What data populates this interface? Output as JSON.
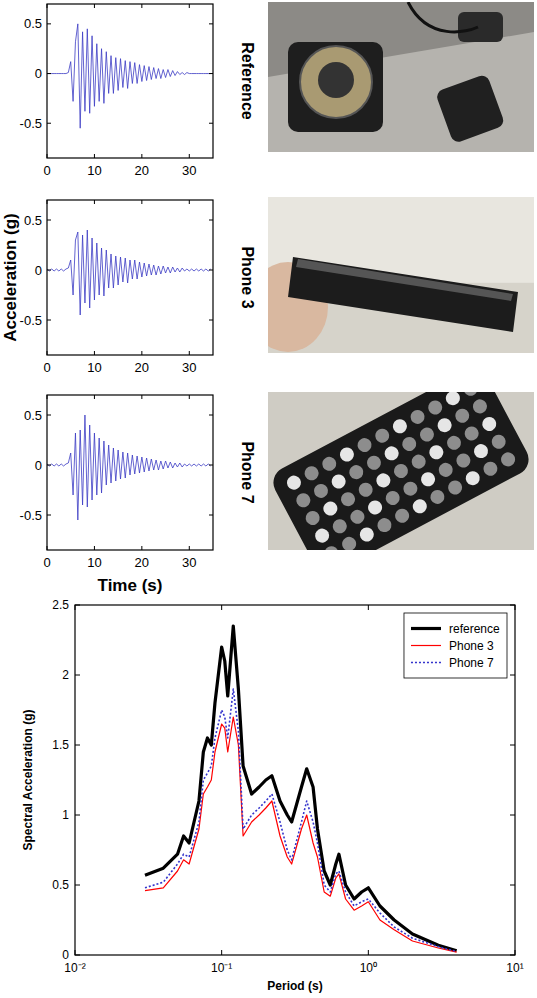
{
  "chart_data": [
    {
      "type": "line",
      "title": "Reference",
      "x": [
        0,
        0.5,
        1,
        1.5,
        2,
        2.5,
        3,
        3.5,
        4,
        4.5,
        5,
        5.5,
        6,
        6.5,
        7,
        7.5,
        8,
        8.5,
        9,
        9.5,
        10,
        10.5,
        11,
        11.5,
        12,
        12.5,
        13,
        13.5,
        14,
        14.5,
        15,
        15.5,
        16,
        16.5,
        17,
        17.5,
        18,
        18.5,
        19,
        19.5,
        20,
        20.5,
        21,
        21.5,
        22,
        22.5,
        23,
        23.5,
        24,
        24.5,
        25,
        25.5,
        26,
        26.5,
        27,
        27.5,
        28,
        28.5,
        29,
        29.5,
        30,
        30.5,
        31,
        31.5,
        32,
        32.5,
        33,
        33.5,
        34,
        34.5
      ],
      "values": [
        0,
        0,
        0,
        0,
        0,
        0,
        0,
        0,
        0,
        0.01,
        0.12,
        -0.28,
        0.32,
        0.5,
        -0.55,
        0.42,
        -0.38,
        0.45,
        -0.4,
        0.38,
        -0.33,
        0.3,
        -0.28,
        0.25,
        -0.3,
        0.22,
        -0.2,
        0.18,
        -0.2,
        0.16,
        -0.17,
        0.15,
        -0.14,
        0.13,
        -0.15,
        0.12,
        -0.1,
        0.11,
        -0.1,
        0.09,
        -0.08,
        0.08,
        -0.07,
        0.07,
        -0.06,
        0.06,
        -0.05,
        0.05,
        -0.05,
        0.04,
        -0.04,
        0.04,
        -0.03,
        0.03,
        -0.02,
        0.02,
        -0.01,
        0.01,
        -0.01,
        0.01,
        0,
        0,
        0,
        0,
        0,
        0,
        0,
        0,
        0,
        0
      ],
      "color": "#3b3bc4",
      "xlim": [
        0,
        35
      ],
      "xticks": [
        0,
        10,
        20,
        30
      ],
      "ylim": [
        -0.85,
        0.7
      ],
      "yticks": [
        -0.5,
        0,
        0.5
      ]
    },
    {
      "type": "line",
      "title": "Phone 3",
      "ylabel": "Acceleration (g)",
      "x": [
        0,
        0.5,
        1,
        1.5,
        2,
        2.5,
        3,
        3.5,
        4,
        4.5,
        5,
        5.5,
        6,
        6.5,
        7,
        7.5,
        8,
        8.5,
        9,
        9.5,
        10,
        10.5,
        11,
        11.5,
        12,
        12.5,
        13,
        13.5,
        14,
        14.5,
        15,
        15.5,
        16,
        16.5,
        17,
        17.5,
        18,
        18.5,
        19,
        19.5,
        20,
        20.5,
        21,
        21.5,
        22,
        22.5,
        23,
        23.5,
        24,
        24.5,
        25,
        25.5,
        26,
        26.5,
        27,
        27.5,
        28,
        28.5,
        29,
        29.5,
        30,
        30.5,
        31,
        31.5,
        32,
        32.5,
        33,
        33.5,
        34,
        34.5
      ],
      "values": [
        0.01,
        -0.01,
        0.01,
        -0.01,
        0.01,
        -0.01,
        0.01,
        -0.01,
        0.01,
        0.02,
        0.1,
        -0.25,
        0.3,
        0.38,
        -0.45,
        0.35,
        -0.33,
        0.4,
        -0.38,
        0.32,
        -0.3,
        0.27,
        -0.25,
        0.22,
        -0.26,
        0.2,
        -0.18,
        0.16,
        -0.18,
        0.14,
        -0.15,
        0.13,
        -0.12,
        0.12,
        -0.13,
        0.1,
        -0.09,
        0.1,
        -0.09,
        0.08,
        -0.07,
        0.07,
        -0.06,
        0.06,
        -0.05,
        0.05,
        -0.05,
        0.04,
        -0.04,
        0.04,
        -0.03,
        0.03,
        -0.03,
        0.03,
        -0.02,
        0.02,
        -0.02,
        0.02,
        -0.01,
        0.01,
        -0.01,
        0.01,
        -0.01,
        0.01,
        -0.01,
        0.01,
        -0.01,
        0.01,
        -0.01,
        0.01
      ],
      "color": "#3b3bc4",
      "xlim": [
        0,
        35
      ],
      "xticks": [
        0,
        10,
        20,
        30
      ],
      "ylim": [
        -0.85,
        0.7
      ],
      "yticks": [
        -0.5,
        0,
        0.5
      ]
    },
    {
      "type": "line",
      "title": "Phone 7",
      "xlabel": "Time (s)",
      "x": [
        0,
        0.5,
        1,
        1.5,
        2,
        2.5,
        3,
        3.5,
        4,
        4.5,
        5,
        5.5,
        6,
        6.5,
        7,
        7.5,
        8,
        8.5,
        9,
        9.5,
        10,
        10.5,
        11,
        11.5,
        12,
        12.5,
        13,
        13.5,
        14,
        14.5,
        15,
        15.5,
        16,
        16.5,
        17,
        17.5,
        18,
        18.5,
        19,
        19.5,
        20,
        20.5,
        21,
        21.5,
        22,
        22.5,
        23,
        23.5,
        24,
        24.5,
        25,
        25.5,
        26,
        26.5,
        27,
        27.5,
        28,
        28.5,
        29,
        29.5,
        30,
        30.5,
        31,
        31.5,
        32,
        32.5,
        33,
        33.5,
        34,
        34.5
      ],
      "values": [
        0.01,
        -0.01,
        0.01,
        -0.01,
        0.01,
        -0.01,
        0.01,
        -0.01,
        0.01,
        0.02,
        0.12,
        -0.3,
        0.32,
        -0.55,
        0.35,
        -0.4,
        0.5,
        -0.42,
        0.4,
        -0.35,
        0.32,
        -0.3,
        0.27,
        -0.28,
        0.24,
        -0.2,
        0.2,
        -0.18,
        0.17,
        -0.16,
        0.15,
        -0.14,
        0.13,
        -0.13,
        0.12,
        -0.1,
        0.1,
        -0.09,
        0.09,
        -0.08,
        0.08,
        -0.07,
        0.07,
        -0.06,
        0.06,
        -0.05,
        0.05,
        -0.05,
        0.04,
        -0.04,
        0.04,
        -0.03,
        0.03,
        -0.03,
        0.02,
        -0.02,
        0.02,
        -0.02,
        0.01,
        -0.01,
        0.01,
        -0.01,
        0.01,
        -0.01,
        0.01,
        -0.01,
        0.01,
        -0.01,
        0.01,
        -0.01
      ],
      "color": "#3b3bc4",
      "xlim": [
        0,
        35
      ],
      "xticks": [
        0,
        10,
        20,
        30
      ],
      "ylim": [
        -0.85,
        0.7
      ],
      "yticks": [
        -0.5,
        0,
        0.5
      ]
    },
    {
      "type": "line",
      "log": "x",
      "xlabel": "Period (s)",
      "ylabel": "Spectral Acceleration (g)",
      "x": [
        0.03,
        0.04,
        0.05,
        0.055,
        0.06,
        0.07,
        0.075,
        0.08,
        0.085,
        0.09,
        0.1,
        0.105,
        0.11,
        0.12,
        0.13,
        0.14,
        0.16,
        0.18,
        0.2,
        0.22,
        0.25,
        0.28,
        0.3,
        0.35,
        0.38,
        0.42,
        0.45,
        0.5,
        0.55,
        0.6,
        0.63,
        0.7,
        0.8,
        0.9,
        1.0,
        1.2,
        1.5,
        2,
        3,
        4
      ],
      "series": [
        {
          "name": "reference",
          "color": "#000000",
          "line_style": "solid",
          "values": [
            0.57,
            0.62,
            0.72,
            0.85,
            0.8,
            1.1,
            1.45,
            1.55,
            1.5,
            1.8,
            2.2,
            2.1,
            1.85,
            2.35,
            1.9,
            1.35,
            1.15,
            1.2,
            1.25,
            1.28,
            1.1,
            1.0,
            0.95,
            1.2,
            1.33,
            1.2,
            0.9,
            0.6,
            0.5,
            0.65,
            0.72,
            0.5,
            0.4,
            0.45,
            0.48,
            0.35,
            0.25,
            0.15,
            0.07,
            0.03
          ]
        },
        {
          "name": "Phone 3",
          "color": "#ff0000",
          "line_style": "solid",
          "values": [
            0.46,
            0.48,
            0.6,
            0.68,
            0.65,
            0.9,
            1.15,
            1.2,
            1.25,
            1.45,
            1.65,
            1.62,
            1.45,
            1.7,
            1.5,
            0.85,
            0.95,
            1.0,
            1.05,
            1.1,
            0.85,
            0.7,
            0.65,
            0.9,
            1.0,
            0.8,
            0.7,
            0.45,
            0.42,
            0.55,
            0.58,
            0.4,
            0.32,
            0.35,
            0.38,
            0.25,
            0.18,
            0.1,
            0.05,
            0.02
          ]
        },
        {
          "name": "Phone 7",
          "color": "#3333cc",
          "line_style": "dotted",
          "values": [
            0.48,
            0.52,
            0.65,
            0.72,
            0.7,
            0.95,
            1.25,
            1.3,
            1.35,
            1.55,
            1.75,
            1.7,
            1.55,
            1.9,
            1.6,
            0.9,
            1.0,
            1.05,
            1.1,
            1.15,
            0.95,
            0.75,
            0.68,
            0.95,
            1.1,
            0.95,
            0.8,
            0.5,
            0.45,
            0.58,
            0.6,
            0.45,
            0.35,
            0.38,
            0.4,
            0.3,
            0.2,
            0.12,
            0.06,
            0.025
          ]
        }
      ],
      "xlim": [
        0.01,
        10
      ],
      "xticks": [
        {
          "value": 0.01,
          "label": "10⁻²"
        },
        {
          "value": 0.1,
          "label": "10⁻¹"
        },
        {
          "value": 1,
          "label": "10⁰"
        },
        {
          "value": 10,
          "label": "10¹"
        }
      ],
      "ylim": [
        0,
        2.5
      ],
      "yticks": [
        0,
        0.5,
        1,
        1.5,
        2,
        2.5
      ],
      "legend": "upper right"
    }
  ]
}
